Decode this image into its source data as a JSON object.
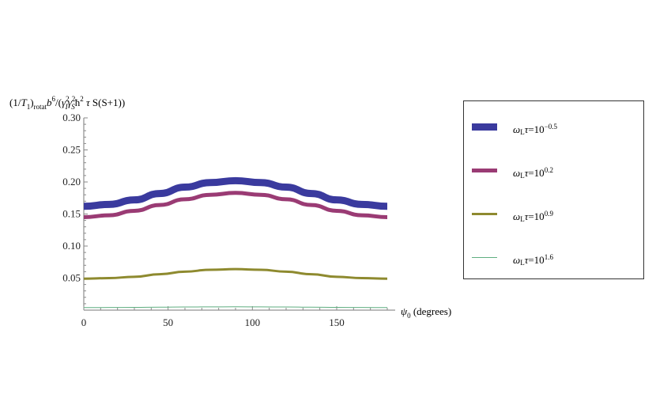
{
  "chart_data": {
    "type": "line",
    "ylabel": "(1/T1)rotat b6/(γI2 γS2 ħ2 τ S(S+1))",
    "xlabel": "ψ0 (degrees)",
    "xlim": [
      0,
      180
    ],
    "ylim": [
      0,
      0.3
    ],
    "xticks": [
      0,
      50,
      100,
      150
    ],
    "yticks": [
      0.05,
      0.1,
      0.15,
      0.2,
      0.25,
      0.3
    ],
    "ytick_labels": [
      "0.05",
      "0.10",
      "0.15",
      "0.20",
      "0.25",
      "0.30"
    ],
    "xtick_labels": [
      "0",
      "50",
      "100",
      "150"
    ],
    "grid": false,
    "legend_position": "right",
    "series": [
      {
        "name": "ωLτ=10^-0.5",
        "label_parts": [
          "ω",
          "L",
          "τ=10",
          "−0.5"
        ],
        "color": "#3a3a9e",
        "width": "thick",
        "x": [
          0,
          15,
          30,
          45,
          60,
          75,
          90,
          105,
          120,
          135,
          150,
          165,
          180
        ],
        "values": [
          0.162,
          0.165,
          0.172,
          0.182,
          0.192,
          0.199,
          0.202,
          0.199,
          0.192,
          0.182,
          0.172,
          0.165,
          0.162
        ]
      },
      {
        "name": "ωLτ=10^0.2",
        "label_parts": [
          "ω",
          "L",
          "τ=10",
          "0.2"
        ],
        "color": "#9a3b74",
        "width": "medium",
        "x": [
          0,
          15,
          30,
          45,
          60,
          75,
          90,
          105,
          120,
          135,
          150,
          165,
          180
        ],
        "values": [
          0.145,
          0.148,
          0.155,
          0.164,
          0.173,
          0.18,
          0.183,
          0.18,
          0.173,
          0.164,
          0.155,
          0.148,
          0.145
        ]
      },
      {
        "name": "ωLτ=10^0.9",
        "label_parts": [
          "ω",
          "L",
          "τ=10",
          "0.9"
        ],
        "color": "#8e8a2f",
        "width": "thin",
        "x": [
          0,
          15,
          30,
          45,
          60,
          75,
          90,
          105,
          120,
          135,
          150,
          165,
          180
        ],
        "values": [
          0.049,
          0.05,
          0.052,
          0.056,
          0.06,
          0.063,
          0.064,
          0.063,
          0.06,
          0.056,
          0.052,
          0.05,
          0.049
        ]
      },
      {
        "name": "ωLτ=10^1.6",
        "label_parts": [
          "ω",
          "L",
          "τ=10",
          "1.6"
        ],
        "color": "#5fae80",
        "width": "hairline",
        "x": [
          0,
          15,
          30,
          45,
          60,
          75,
          90,
          105,
          120,
          135,
          150,
          165,
          180
        ],
        "values": [
          0.004,
          0.0041,
          0.0043,
          0.0046,
          0.0049,
          0.0051,
          0.0052,
          0.0051,
          0.0049,
          0.0046,
          0.0043,
          0.0041,
          0.004
        ]
      }
    ]
  }
}
